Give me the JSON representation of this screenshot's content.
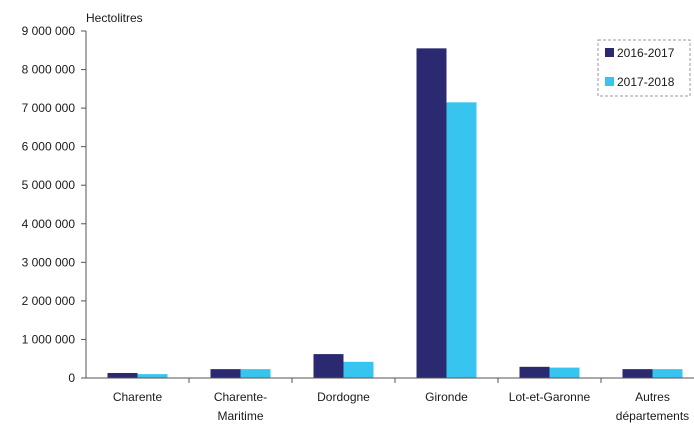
{
  "colors": {
    "series_1": "#2b2a70",
    "series_2": "#37c4ef",
    "axis": "#555555",
    "legend_border": "#9a9a9a"
  },
  "chart_data": {
    "type": "bar",
    "title": "",
    "xlabel": "",
    "ylabel": "Hectolitres",
    "ylim": [
      0,
      9000000
    ],
    "yticks": [
      0,
      1000000,
      2000000,
      3000000,
      4000000,
      5000000,
      6000000,
      7000000,
      8000000,
      9000000
    ],
    "ytick_labels": [
      "0",
      "1 000 000",
      "2 000 000",
      "3 000 000",
      "4 000 000",
      "5 000 000",
      "6 000 000",
      "7 000 000",
      "8 000 000",
      "9 000 000"
    ],
    "categories": [
      "Charente",
      "Charente-Maritime",
      "Dordogne",
      "Gironde",
      "Lot-et-Garonne",
      "Autres départements"
    ],
    "category_lines": [
      [
        "Charente"
      ],
      [
        "Charente-",
        "Maritime"
      ],
      [
        "Dordogne"
      ],
      [
        "Gironde"
      ],
      [
        "Lot-et-Garonne"
      ],
      [
        "Autres",
        "départements"
      ]
    ],
    "series": [
      {
        "name": "2016-2017",
        "values": [
          130000,
          230000,
          620000,
          8550000,
          290000,
          230000
        ]
      },
      {
        "name": "2017-2018",
        "values": [
          100000,
          230000,
          420000,
          7150000,
          270000,
          230000
        ]
      }
    ],
    "grid": false,
    "legend_position": "top-right"
  }
}
